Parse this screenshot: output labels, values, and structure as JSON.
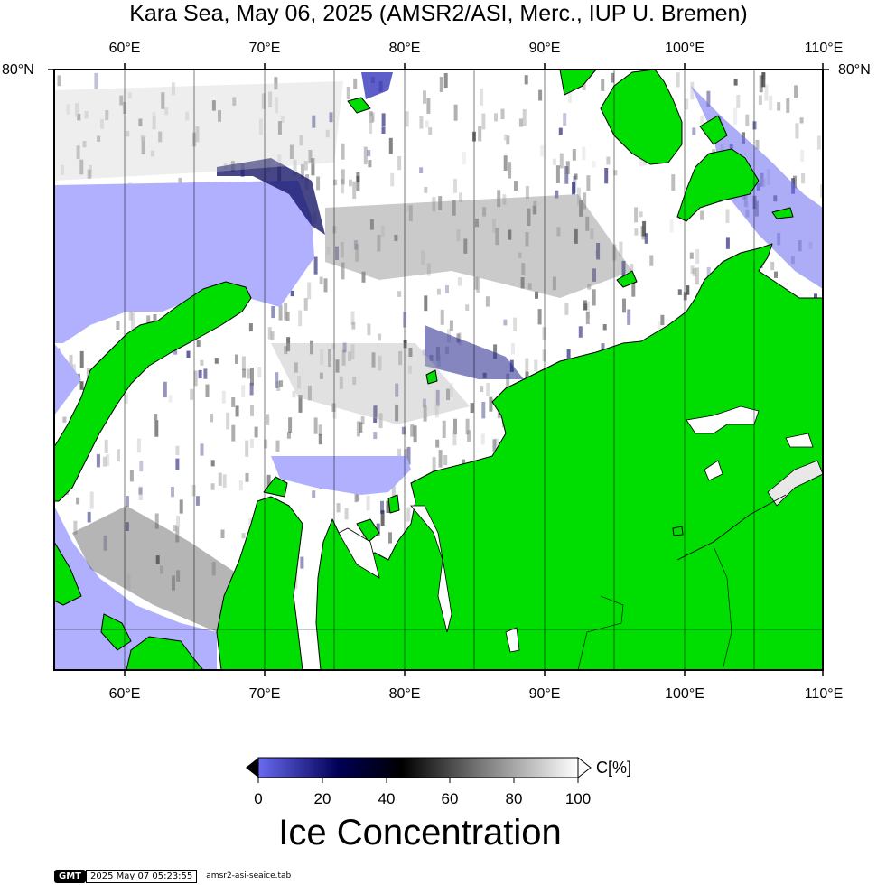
{
  "title": "Kara Sea, May 06, 2025 (AMSR2/ASI, Merc., IUP U. Bremen)",
  "lon_labels": [
    "60°E",
    "70°E",
    "80°E",
    "90°E",
    "100°E",
    "110°E"
  ],
  "lat_label": "80°N",
  "colorbar": {
    "ticks": [
      "0",
      "20",
      "40",
      "60",
      "80",
      "100"
    ],
    "unit": "C[%]",
    "title": "Ice Concentration",
    "colors": [
      "#6a6af0",
      "#000055",
      "#000000",
      "#7a7a7a",
      "#ffffff"
    ]
  },
  "footer": {
    "logo": "GMT",
    "timestamp": "2025 May 07 05:23:55",
    "source": "amsr2-asi-seaice.tab"
  },
  "palette": {
    "land": "#00dd00",
    "coast": "#000000",
    "open_water": "#b0b0ff",
    "ice_high": "#ffffff",
    "ice_mid": "#9a9a9a",
    "ice_low": "#0a0a60"
  }
}
